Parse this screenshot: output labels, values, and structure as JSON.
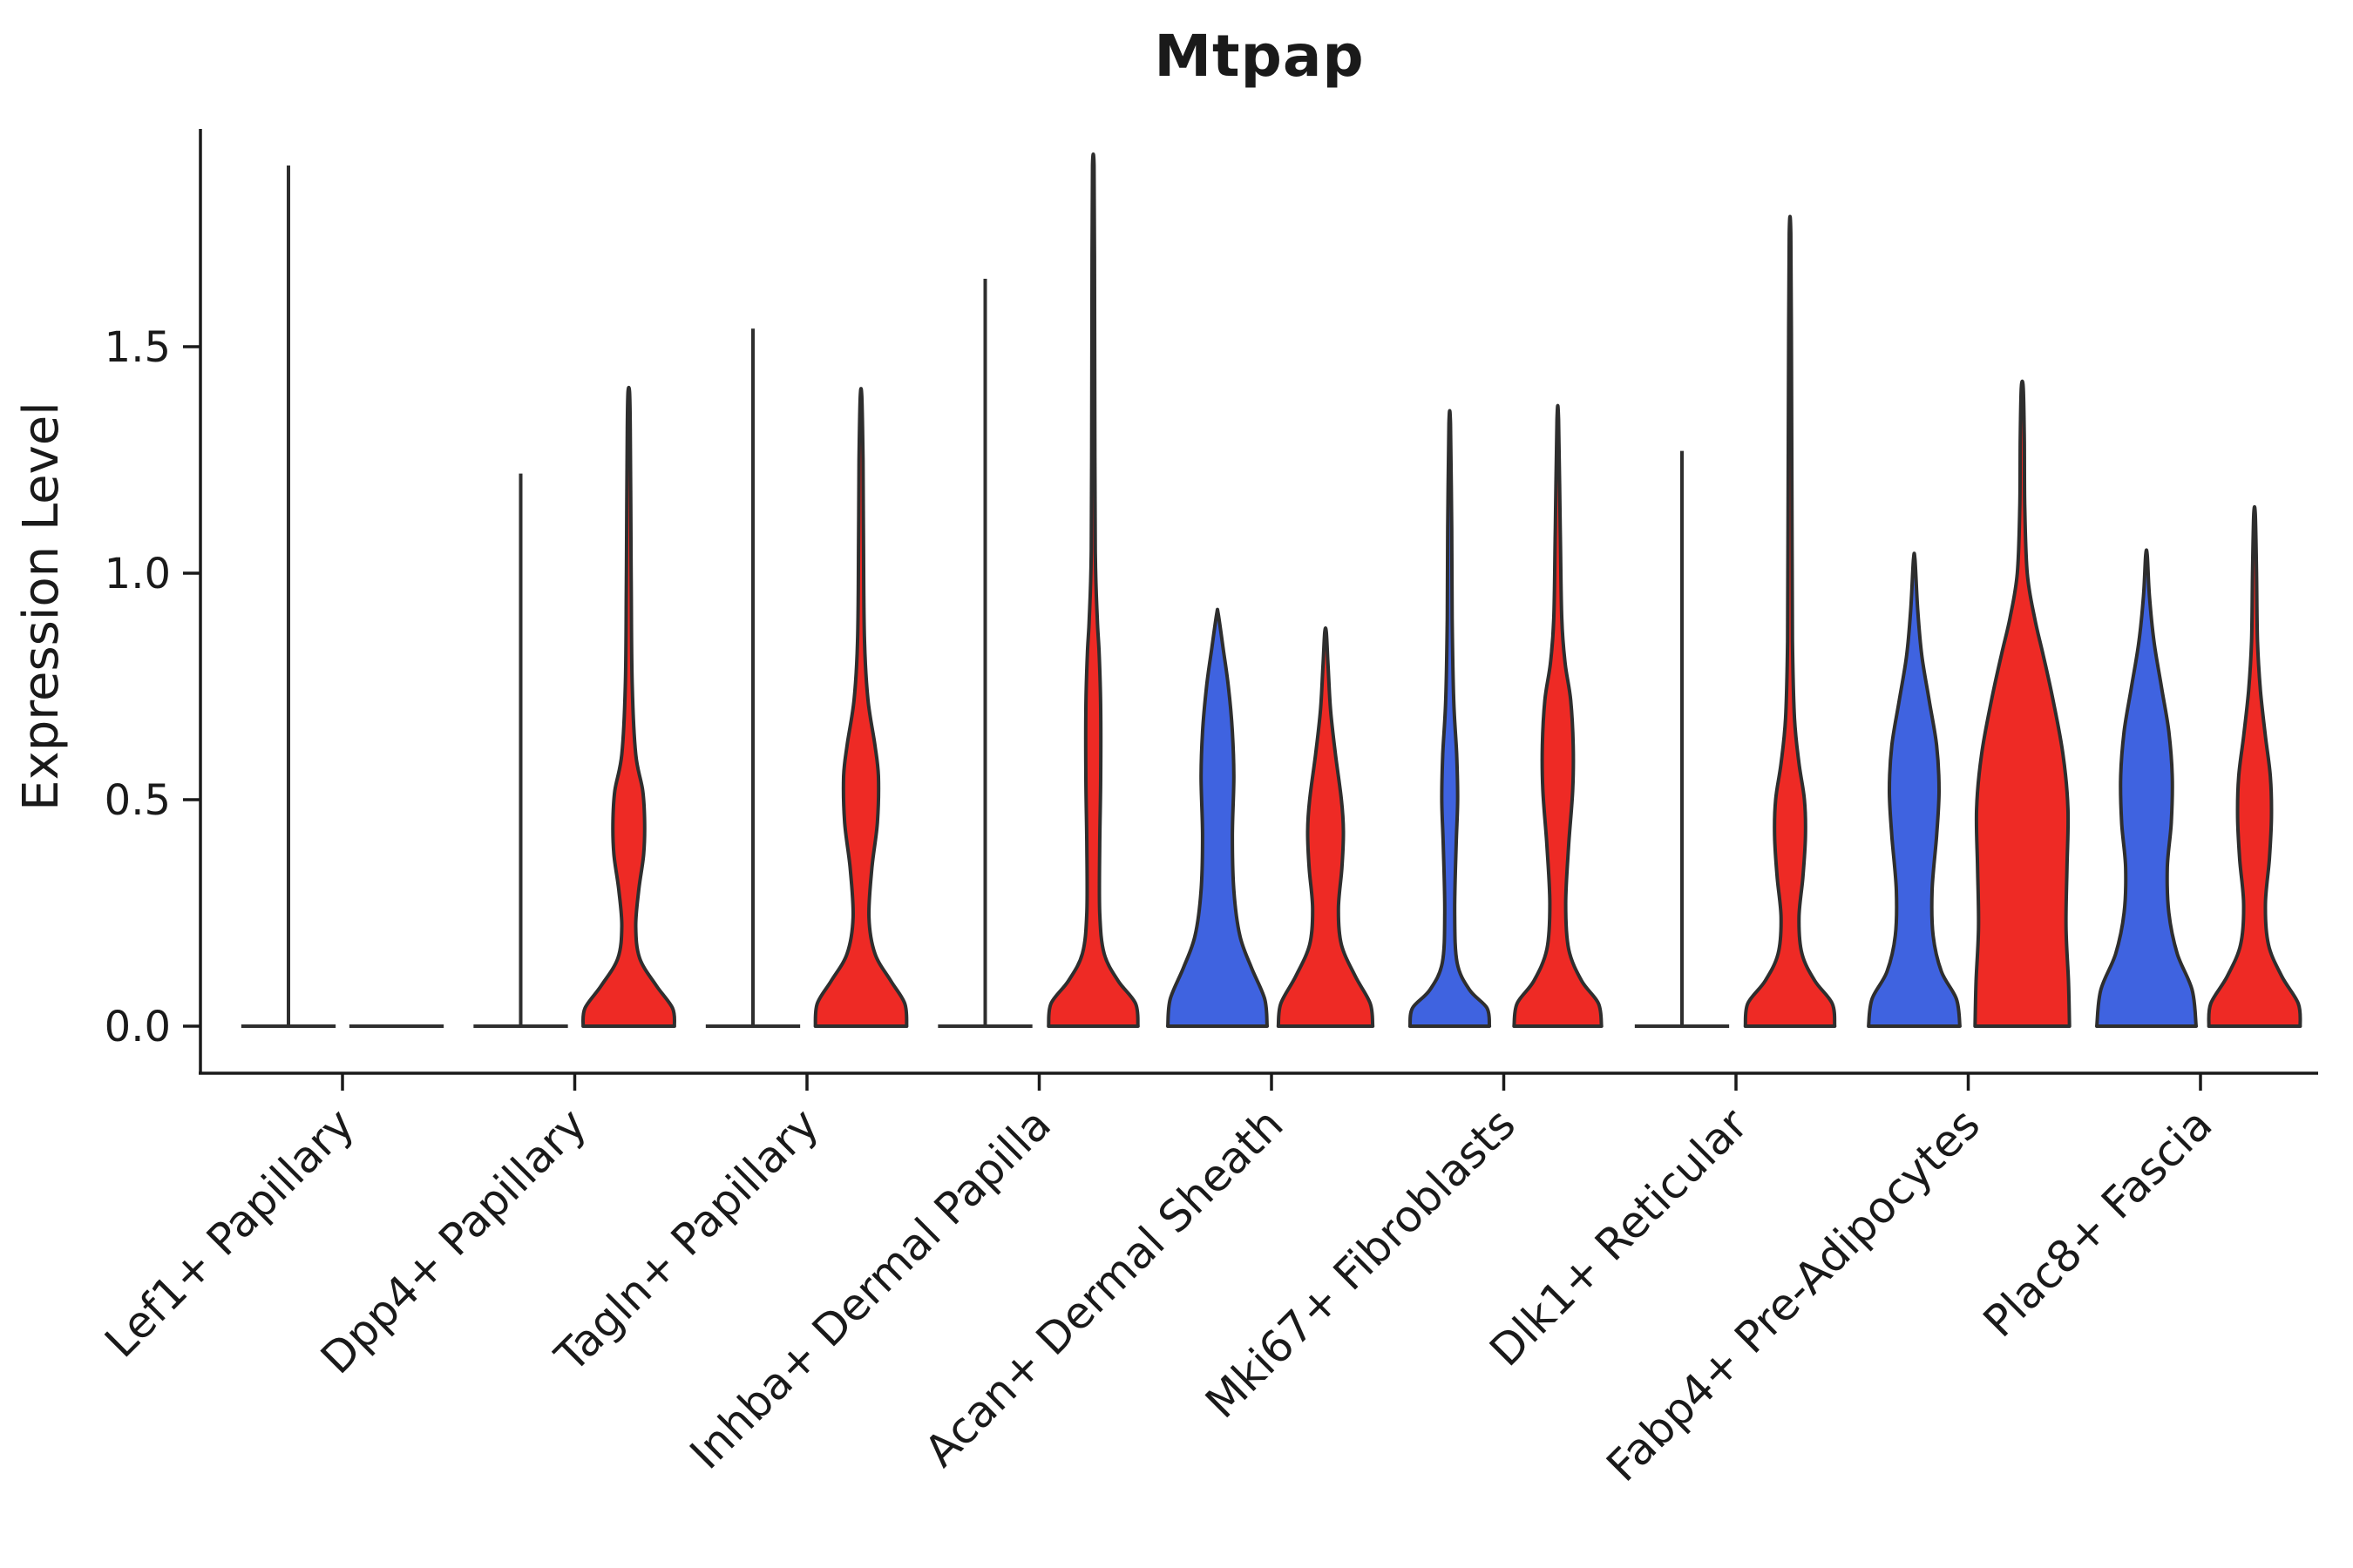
{
  "chart_data": {
    "type": "violin",
    "title": "Mtpap",
    "ylabel": "Expression Level",
    "ylim": [
      -0.1,
      1.98
    ],
    "grid": false,
    "legend": "none",
    "yticks": [
      {
        "value": 0.0,
        "label": "0.0"
      },
      {
        "value": 0.5,
        "label": "0.5"
      },
      {
        "value": 1.0,
        "label": "1.0"
      },
      {
        "value": 1.5,
        "label": "1.5"
      }
    ],
    "colors": {
      "blue": "#3F63E0",
      "red": "#EE2A25",
      "outline": "#2e2e2e",
      "axis": "#1a1a1a"
    },
    "categories": [
      "Lef1+ Papillary",
      "Dpp4+ Papillary",
      "Tagln+ Papillary",
      "Inhba+ Dermal Papilla",
      "Acan+ Dermal Sheath",
      "Mki67+ Fibroblasts",
      "Dlk1+ Reticular",
      "Fabp4+ Pre-Adipocytes",
      "Plac8+ Fascia"
    ],
    "groups": [
      {
        "category": "Lef1+ Papillary",
        "violins": [
          {
            "side": "left",
            "color": "blue",
            "type": "spike",
            "max": 1.9
          },
          {
            "side": "right",
            "color": "red",
            "type": "spike",
            "max": 0.0
          }
        ]
      },
      {
        "category": "Dpp4+ Papillary",
        "violins": [
          {
            "side": "left",
            "color": "blue",
            "type": "spike",
            "max": 1.22
          },
          {
            "side": "right",
            "color": "red",
            "type": "violin",
            "max": 1.4,
            "profile": [
              [
                0,
                0.92
              ],
              [
                0.04,
                0.88
              ],
              [
                0.09,
                0.55
              ],
              [
                0.15,
                0.22
              ],
              [
                0.22,
                0.14
              ],
              [
                0.3,
                0.2
              ],
              [
                0.38,
                0.3
              ],
              [
                0.45,
                0.32
              ],
              [
                0.52,
                0.28
              ],
              [
                0.6,
                0.14
              ],
              [
                0.75,
                0.07
              ],
              [
                0.95,
                0.05
              ],
              [
                1.15,
                0.04
              ],
              [
                1.32,
                0.03
              ],
              [
                1.4,
                0.015
              ]
            ]
          }
        ]
      },
      {
        "category": "Tagln+ Papillary",
        "violins": [
          {
            "side": "left",
            "color": "blue",
            "type": "spike",
            "max": 1.54
          },
          {
            "side": "right",
            "color": "red",
            "type": "violin",
            "max": 1.39,
            "profile": [
              [
                0,
                0.92
              ],
              [
                0.05,
                0.88
              ],
              [
                0.1,
                0.6
              ],
              [
                0.16,
                0.28
              ],
              [
                0.24,
                0.16
              ],
              [
                0.35,
                0.22
              ],
              [
                0.45,
                0.33
              ],
              [
                0.55,
                0.35
              ],
              [
                0.62,
                0.28
              ],
              [
                0.72,
                0.14
              ],
              [
                0.85,
                0.07
              ],
              [
                1.05,
                0.05
              ],
              [
                1.25,
                0.04
              ],
              [
                1.39,
                0.015
              ]
            ]
          }
        ]
      },
      {
        "category": "Inhba+ Dermal Papilla",
        "violins": [
          {
            "side": "left",
            "color": "blue",
            "type": "spike",
            "max": 1.65
          },
          {
            "side": "right",
            "color": "red",
            "type": "violin",
            "max": 1.9,
            "profile": [
              [
                0,
                0.9
              ],
              [
                0.05,
                0.85
              ],
              [
                0.1,
                0.5
              ],
              [
                0.16,
                0.22
              ],
              [
                0.25,
                0.13
              ],
              [
                0.4,
                0.13
              ],
              [
                0.55,
                0.15
              ],
              [
                0.7,
                0.15
              ],
              [
                0.82,
                0.12
              ],
              [
                0.9,
                0.08
              ],
              [
                1.05,
                0.04
              ],
              [
                1.4,
                0.03
              ],
              [
                1.7,
                0.025
              ],
              [
                1.9,
                0.015
              ]
            ]
          }
        ]
      },
      {
        "category": "Acan+ Dermal Sheath",
        "violins": [
          {
            "side": "left",
            "color": "blue",
            "type": "violin",
            "max": 0.91,
            "profile": [
              [
                0,
                1.0
              ],
              [
                0.06,
                0.95
              ],
              [
                0.13,
                0.68
              ],
              [
                0.2,
                0.45
              ],
              [
                0.3,
                0.33
              ],
              [
                0.42,
                0.3
              ],
              [
                0.55,
                0.33
              ],
              [
                0.65,
                0.3
              ],
              [
                0.75,
                0.22
              ],
              [
                0.83,
                0.12
              ],
              [
                0.91,
                0.015
              ]
            ]
          },
          {
            "side": "right",
            "color": "red",
            "type": "violin",
            "max": 0.87,
            "profile": [
              [
                0,
                0.95
              ],
              [
                0.05,
                0.9
              ],
              [
                0.11,
                0.6
              ],
              [
                0.18,
                0.32
              ],
              [
                0.26,
                0.26
              ],
              [
                0.35,
                0.33
              ],
              [
                0.43,
                0.36
              ],
              [
                0.5,
                0.32
              ],
              [
                0.6,
                0.2
              ],
              [
                0.7,
                0.1
              ],
              [
                0.8,
                0.05
              ],
              [
                0.87,
                0.015
              ]
            ]
          }
        ]
      },
      {
        "category": "Mki67+ Fibroblasts",
        "violins": [
          {
            "side": "left",
            "color": "blue",
            "type": "violin",
            "max": 1.33,
            "profile": [
              [
                0,
                0.8
              ],
              [
                0.04,
                0.75
              ],
              [
                0.08,
                0.4
              ],
              [
                0.14,
                0.15
              ],
              [
                0.25,
                0.1
              ],
              [
                0.4,
                0.13
              ],
              [
                0.5,
                0.16
              ],
              [
                0.6,
                0.14
              ],
              [
                0.72,
                0.08
              ],
              [
                0.9,
                0.05
              ],
              [
                1.1,
                0.04
              ],
              [
                1.33,
                0.015
              ]
            ]
          },
          {
            "side": "right",
            "color": "red",
            "type": "violin",
            "max": 1.34,
            "profile": [
              [
                0,
                0.88
              ],
              [
                0.05,
                0.82
              ],
              [
                0.1,
                0.48
              ],
              [
                0.17,
                0.22
              ],
              [
                0.27,
                0.16
              ],
              [
                0.4,
                0.22
              ],
              [
                0.52,
                0.3
              ],
              [
                0.62,
                0.31
              ],
              [
                0.72,
                0.26
              ],
              [
                0.8,
                0.15
              ],
              [
                0.9,
                0.08
              ],
              [
                1.1,
                0.05
              ],
              [
                1.34,
                0.015
              ]
            ]
          }
        ]
      },
      {
        "category": "Dlk1+ Reticular",
        "violins": [
          {
            "side": "left",
            "color": "blue",
            "type": "spike",
            "max": 1.27
          },
          {
            "side": "right",
            "color": "red",
            "type": "violin",
            "max": 1.75,
            "profile": [
              [
                0,
                0.9
              ],
              [
                0.05,
                0.85
              ],
              [
                0.1,
                0.5
              ],
              [
                0.16,
                0.24
              ],
              [
                0.24,
                0.18
              ],
              [
                0.33,
                0.26
              ],
              [
                0.42,
                0.31
              ],
              [
                0.5,
                0.29
              ],
              [
                0.58,
                0.18
              ],
              [
                0.68,
                0.09
              ],
              [
                0.85,
                0.05
              ],
              [
                1.1,
                0.04
              ],
              [
                1.45,
                0.03
              ],
              [
                1.75,
                0.015
              ]
            ]
          }
        ]
      },
      {
        "category": "Fabp4+ Pre-Adipocytes",
        "violins": [
          {
            "side": "left",
            "color": "blue",
            "type": "violin",
            "max": 1.03,
            "profile": [
              [
                0,
                0.92
              ],
              [
                0.06,
                0.85
              ],
              [
                0.12,
                0.55
              ],
              [
                0.2,
                0.38
              ],
              [
                0.3,
                0.36
              ],
              [
                0.42,
                0.45
              ],
              [
                0.52,
                0.5
              ],
              [
                0.62,
                0.45
              ],
              [
                0.72,
                0.3
              ],
              [
                0.82,
                0.15
              ],
              [
                0.92,
                0.07
              ],
              [
                1.03,
                0.015
              ]
            ]
          },
          {
            "side": "right",
            "color": "red",
            "type": "violin",
            "max": 1.41,
            "profile": [
              [
                0,
                0.95
              ],
              [
                0.1,
                0.93
              ],
              [
                0.22,
                0.88
              ],
              [
                0.35,
                0.9
              ],
              [
                0.48,
                0.92
              ],
              [
                0.6,
                0.82
              ],
              [
                0.72,
                0.62
              ],
              [
                0.82,
                0.42
              ],
              [
                0.9,
                0.25
              ],
              [
                1.0,
                0.1
              ],
              [
                1.15,
                0.05
              ],
              [
                1.3,
                0.04
              ],
              [
                1.41,
                0.02
              ]
            ]
          }
        ]
      },
      {
        "category": "Plac8+ Fascia",
        "violins": [
          {
            "side": "left",
            "color": "blue",
            "type": "violin",
            "max": 1.04,
            "profile": [
              [
                0,
                1.0
              ],
              [
                0.08,
                0.92
              ],
              [
                0.16,
                0.62
              ],
              [
                0.25,
                0.45
              ],
              [
                0.35,
                0.42
              ],
              [
                0.45,
                0.5
              ],
              [
                0.55,
                0.52
              ],
              [
                0.65,
                0.45
              ],
              [
                0.75,
                0.3
              ],
              [
                0.85,
                0.15
              ],
              [
                0.95,
                0.06
              ],
              [
                1.04,
                0.015
              ]
            ]
          },
          {
            "side": "right",
            "color": "red",
            "type": "violin",
            "max": 1.13,
            "profile": [
              [
                0,
                0.92
              ],
              [
                0.05,
                0.88
              ],
              [
                0.11,
                0.55
              ],
              [
                0.18,
                0.28
              ],
              [
                0.27,
                0.22
              ],
              [
                0.37,
                0.3
              ],
              [
                0.46,
                0.34
              ],
              [
                0.55,
                0.32
              ],
              [
                0.64,
                0.22
              ],
              [
                0.74,
                0.12
              ],
              [
                0.85,
                0.06
              ],
              [
                1.0,
                0.04
              ],
              [
                1.13,
                0.015
              ]
            ]
          }
        ]
      }
    ]
  }
}
